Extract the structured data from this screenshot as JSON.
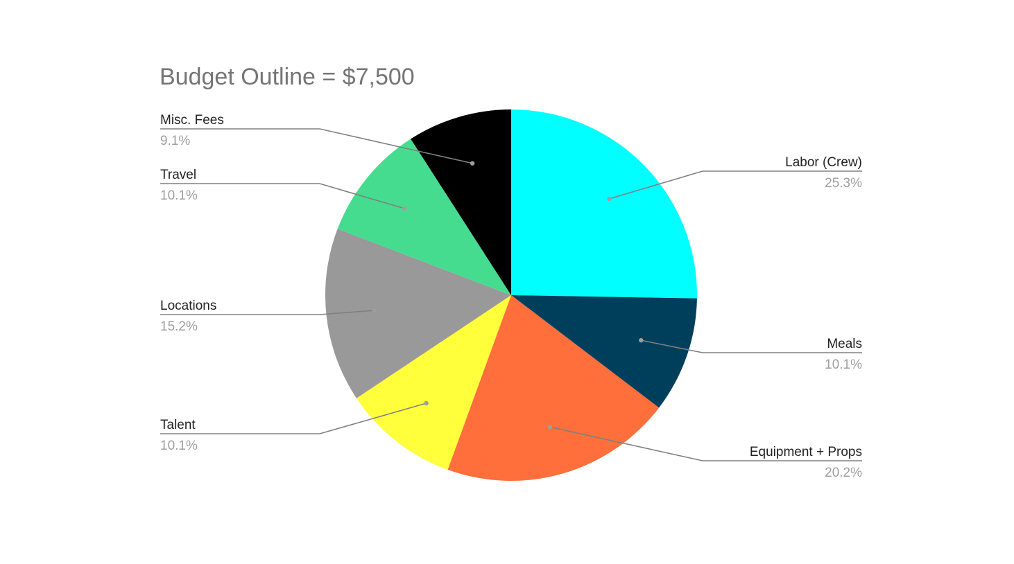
{
  "chart_data": {
    "type": "pie",
    "title": "Budget Outline = $7,500",
    "legend": "none",
    "label_style": "callout",
    "slices": [
      {
        "label": "Labor (Crew)",
        "value": 25.3,
        "percent_label": "25.3%",
        "color": "#00ffff"
      },
      {
        "label": "Meals",
        "value": 10.1,
        "percent_label": "10.1%",
        "color": "#003f5c"
      },
      {
        "label": "Equipment + Props",
        "value": 20.2,
        "percent_label": "20.2%",
        "color": "#ff6f3c"
      },
      {
        "label": "Talent",
        "value": 10.1,
        "percent_label": "10.1%",
        "color": "#ffff3c"
      },
      {
        "label": "Locations",
        "value": 15.2,
        "percent_label": "15.2%",
        "color": "#999999"
      },
      {
        "label": "Travel",
        "value": 10.1,
        "percent_label": "10.1%",
        "color": "#46dc90"
      },
      {
        "label": "Misc. Fees",
        "value": 9.1,
        "percent_label": "9.1%",
        "color": "#000000"
      }
    ]
  }
}
